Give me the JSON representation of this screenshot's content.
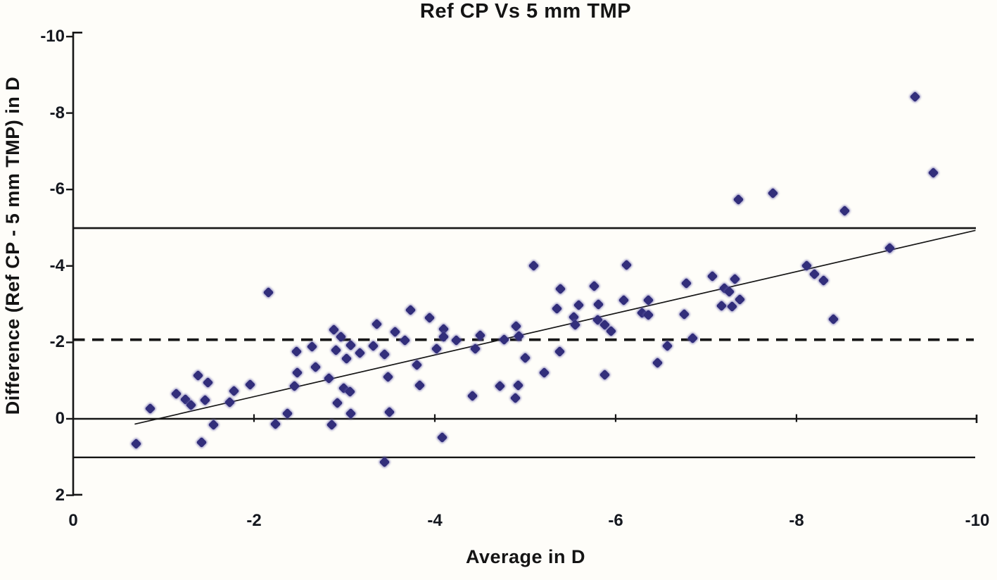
{
  "chart_data": {
    "type": "scatter",
    "title": "Ref CP Vs 5 mm TMP",
    "xlabel": "Average in D",
    "ylabel": "Difference (Ref CP - 5 mm TMP) in D",
    "x_axis": {
      "min": 0,
      "max": -10,
      "ticks": [
        0,
        -2,
        -4,
        -6,
        -8,
        -10
      ],
      "direction": "0 at left, -10 at right",
      "grid": false
    },
    "y_axis": {
      "min": -10,
      "max": 2,
      "ticks": [
        -10,
        -8,
        -6,
        -4,
        -2,
        0,
        2
      ],
      "direction": "-10 at top, 2 at bottom",
      "grid": false
    },
    "legend": "none",
    "marker": {
      "shape": "diamond",
      "color": "#322e7b"
    },
    "reference_lines": {
      "zero_line": {
        "y": 0,
        "style": "solid"
      },
      "mean_difference": {
        "y": -2.07,
        "style": "dashed"
      },
      "upper_limit_of_agreement": {
        "y": -4.99,
        "style": "solid"
      },
      "lower_limit_of_agreement": {
        "y": 1.01,
        "style": "solid"
      }
    },
    "trend_line": {
      "x1": -0.68,
      "y1": 0.14,
      "x2": -9.98,
      "y2": -4.93,
      "style": "solid-thin"
    },
    "points": [
      [
        -0.7,
        0.66
      ],
      [
        -0.85,
        -0.26
      ],
      [
        -1.14,
        -0.66
      ],
      [
        -1.24,
        -0.5
      ],
      [
        -1.3,
        -0.35
      ],
      [
        -1.38,
        -1.14
      ],
      [
        -1.42,
        0.61
      ],
      [
        -1.46,
        -0.48
      ],
      [
        -1.49,
        -0.94
      ],
      [
        -1.55,
        0.15
      ],
      [
        -1.73,
        -0.43
      ],
      [
        -1.78,
        -0.72
      ],
      [
        -1.96,
        -0.89
      ],
      [
        -2.16,
        -3.3
      ],
      [
        -2.24,
        0.14
      ],
      [
        -2.37,
        -0.13
      ],
      [
        -2.45,
        -0.85
      ],
      [
        -2.47,
        -1.75
      ],
      [
        -2.48,
        -1.2
      ],
      [
        -2.64,
        -1.88
      ],
      [
        -2.68,
        -1.35
      ],
      [
        -2.83,
        -1.05
      ],
      [
        -2.86,
        0.15
      ],
      [
        -2.88,
        -2.33
      ],
      [
        -2.91,
        -1.79
      ],
      [
        -2.92,
        -0.41
      ],
      [
        -2.96,
        -2.15
      ],
      [
        -2.99,
        -0.8
      ],
      [
        -3.02,
        -1.57
      ],
      [
        -3.06,
        -0.7
      ],
      [
        -3.07,
        -1.92
      ],
      [
        -3.07,
        -0.13
      ],
      [
        -3.17,
        -1.73
      ],
      [
        -3.32,
        -1.9
      ],
      [
        -3.36,
        -2.48
      ],
      [
        -3.44,
        -1.69
      ],
      [
        -3.44,
        1.14
      ],
      [
        -3.48,
        -1.1
      ],
      [
        -3.5,
        -0.18
      ],
      [
        -3.56,
        -2.28
      ],
      [
        -3.67,
        -2.06
      ],
      [
        -3.73,
        -2.85
      ],
      [
        -3.8,
        -1.4
      ],
      [
        -3.83,
        -0.87
      ],
      [
        -3.94,
        -2.65
      ],
      [
        -4.02,
        -1.84
      ],
      [
        -4.08,
        0.49
      ],
      [
        -4.1,
        -2.34
      ],
      [
        -4.1,
        -2.15
      ],
      [
        -4.24,
        -2.06
      ],
      [
        -4.42,
        -0.59
      ],
      [
        -4.45,
        -1.84
      ],
      [
        -4.5,
        -2.18
      ],
      [
        -4.72,
        -0.86
      ],
      [
        -4.77,
        -2.08
      ],
      [
        -4.89,
        -0.55
      ],
      [
        -4.9,
        -2.43
      ],
      [
        -4.92,
        -0.88
      ],
      [
        -4.93,
        -2.17
      ],
      [
        -5.0,
        -1.6
      ],
      [
        -5.09,
        -4.0
      ],
      [
        -5.21,
        -1.2
      ],
      [
        -5.35,
        -2.89
      ],
      [
        -5.38,
        -1.76
      ],
      [
        -5.39,
        -3.39
      ],
      [
        -5.54,
        -2.67
      ],
      [
        -5.55,
        -2.45
      ],
      [
        -5.59,
        -2.98
      ],
      [
        -5.76,
        -3.48
      ],
      [
        -5.8,
        -2.58
      ],
      [
        -5.81,
        -3.0
      ],
      [
        -5.88,
        -2.45
      ],
      [
        -5.88,
        -1.15
      ],
      [
        -5.95,
        -2.3
      ],
      [
        -6.09,
        -3.11
      ],
      [
        -6.12,
        -4.03
      ],
      [
        -6.29,
        -2.78
      ],
      [
        -6.36,
        -3.11
      ],
      [
        -6.36,
        -2.71
      ],
      [
        -6.46,
        -1.47
      ],
      [
        -6.57,
        -1.9
      ],
      [
        -6.76,
        -2.73
      ],
      [
        -6.78,
        -3.54
      ],
      [
        -6.85,
        -2.1
      ],
      [
        -7.07,
        -3.73
      ],
      [
        -7.17,
        -2.96
      ],
      [
        -7.2,
        -3.42
      ],
      [
        -7.26,
        -3.33
      ],
      [
        -7.29,
        -2.93
      ],
      [
        -7.32,
        -3.66
      ],
      [
        -7.36,
        -5.73
      ],
      [
        -7.37,
        -3.13
      ],
      [
        -7.74,
        -5.91
      ],
      [
        -8.11,
        -4.01
      ],
      [
        -8.2,
        -3.79
      ],
      [
        -8.3,
        -3.61
      ],
      [
        -8.41,
        -2.6
      ],
      [
        -8.53,
        -5.45
      ],
      [
        -9.03,
        -4.46
      ],
      [
        -9.31,
        -8.43
      ],
      [
        -9.51,
        -6.43
      ]
    ]
  }
}
